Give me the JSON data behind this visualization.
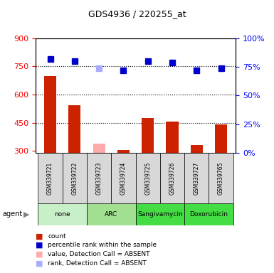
{
  "title": "GDS4936 / 220255_at",
  "samples": [
    "GSM339721",
    "GSM339722",
    "GSM339723",
    "GSM339724",
    "GSM339725",
    "GSM339726",
    "GSM339727",
    "GSM339765"
  ],
  "count_values": [
    700,
    545,
    340,
    305,
    475,
    455,
    330,
    440
  ],
  "count_absent": [
    false,
    false,
    true,
    false,
    false,
    false,
    false,
    false
  ],
  "rank_values": [
    82,
    80,
    74,
    72,
    80,
    79,
    72,
    74
  ],
  "rank_absent": [
    false,
    false,
    true,
    false,
    false,
    false,
    false,
    false
  ],
  "ylim_left": [
    290,
    900
  ],
  "ylim_right": [
    0,
    100
  ],
  "yticks_left": [
    300,
    450,
    600,
    750,
    900
  ],
  "yticks_right": [
    0,
    25,
    50,
    75,
    100
  ],
  "hlines": [
    450,
    600,
    750
  ],
  "agents": [
    {
      "label": "none",
      "cols": [
        0,
        1
      ],
      "color": "#d0f0d0"
    },
    {
      "label": "ARC",
      "cols": [
        2,
        3
      ],
      "color": "#a8e6a0"
    },
    {
      "label": "Sangivamycin",
      "cols": [
        4,
        5
      ],
      "color": "#44ee44"
    },
    {
      "label": "Doxorubicin",
      "cols": [
        6,
        7
      ],
      "color": "#44ee44"
    }
  ],
  "bar_color_present": "#cc2200",
  "bar_color_absent": "#ffaaaa",
  "rank_color_present": "#0000cc",
  "rank_color_absent": "#aaaaff",
  "bar_width": 0.5,
  "baseline": 290
}
